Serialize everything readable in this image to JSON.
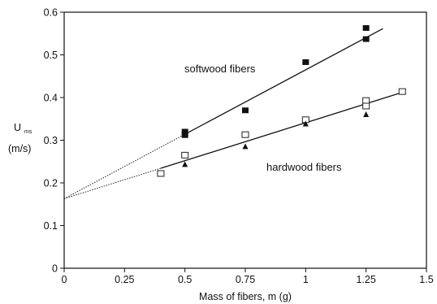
{
  "chart_data": {
    "type": "scatter",
    "xlabel": "Mass of fibers, m (g)",
    "ylabel_main": "U",
    "ylabel_sub": "ms",
    "ylabel_unit": "(m/s)",
    "xlim": [
      0,
      1.5
    ],
    "ylim": [
      0,
      0.6
    ],
    "x_ticks": [
      0,
      0.25,
      0.5,
      0.75,
      1,
      1.25,
      1.5
    ],
    "x_tick_labels": [
      "0",
      "0.25",
      "0.5",
      "0.75",
      "1",
      "1.25",
      "1.5"
    ],
    "y_ticks": [
      0,
      0.1,
      0.2,
      0.3,
      0.4,
      0.5,
      0.6
    ],
    "y_tick_labels": [
      "0",
      "0.1",
      "0.2",
      "0.3",
      "0.4",
      "0.5",
      "0.6"
    ],
    "grid": false,
    "series": [
      {
        "key": "softwood",
        "label": "softwood fibers",
        "marker": "filled-square",
        "points": [
          [
            0.5,
            0.32
          ],
          [
            0.5,
            0.312
          ],
          [
            0.75,
            0.37
          ],
          [
            1.0,
            0.483
          ],
          [
            1.25,
            0.563
          ],
          [
            1.25,
            0.537
          ]
        ],
        "fit": {
          "intercept": 0.163,
          "slope": 0.302,
          "x_dotted": [
            0,
            0.5
          ],
          "x_solid": [
            0.5,
            1.32
          ]
        }
      },
      {
        "key": "hardwood_open_square",
        "label": "",
        "marker": "open-square",
        "points": [
          [
            0.4,
            0.222
          ],
          [
            0.5,
            0.265
          ],
          [
            0.75,
            0.313
          ],
          [
            1.0,
            0.348
          ],
          [
            1.25,
            0.393
          ],
          [
            1.25,
            0.38
          ],
          [
            1.4,
            0.414
          ]
        ]
      },
      {
        "key": "hardwood_filled_triangle",
        "label": "",
        "marker": "filled-triangle",
        "points": [
          [
            0.5,
            0.243
          ],
          [
            0.75,
            0.285
          ],
          [
            1.0,
            0.338
          ],
          [
            1.25,
            0.36
          ]
        ]
      }
    ],
    "hardwood_fit": {
      "intercept": 0.163,
      "slope": 0.178,
      "x_dotted": [
        0,
        0.4
      ],
      "x_solid": [
        0.4,
        1.4
      ]
    },
    "annotations": [
      {
        "key": "softwood",
        "text": "softwood fibers"
      },
      {
        "key": "hardwood",
        "text": "hardwood fibers"
      }
    ]
  }
}
